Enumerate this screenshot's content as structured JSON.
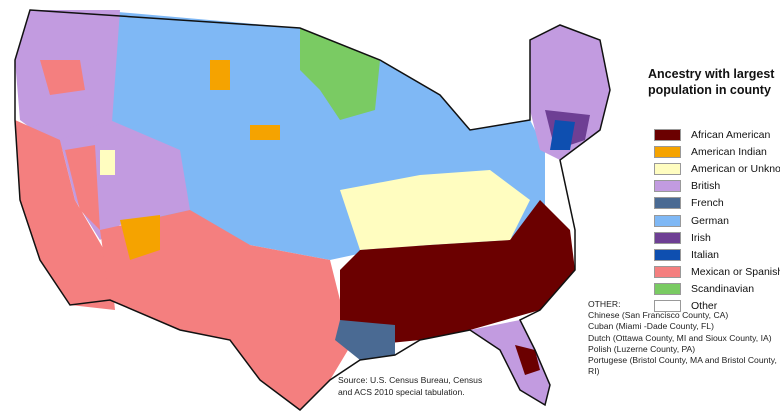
{
  "legend": {
    "title": "Ancestry with largest population in county",
    "items": [
      {
        "label": "African American",
        "color": "#6b0000"
      },
      {
        "label": "American Indian",
        "color": "#f5a300"
      },
      {
        "label": "American or Unknown",
        "color": "#fffdc0"
      },
      {
        "label": "British",
        "color": "#c29be0"
      },
      {
        "label": "French",
        "color": "#4a6a93"
      },
      {
        "label": "German",
        "color": "#7fb8f5"
      },
      {
        "label": "Irish",
        "color": "#6e3f94"
      },
      {
        "label": "Italian",
        "color": "#0e4fb0"
      },
      {
        "label": "Mexican or Spanish",
        "color": "#f47f7f"
      },
      {
        "label": "Scandinavian",
        "color": "#7acb63"
      },
      {
        "label": "Other",
        "color": "#ffffff"
      }
    ]
  },
  "other_note": {
    "heading": "OTHER:",
    "lines": [
      "Chinese (San Francisco County, CA)",
      "Cuban (Miami -Dade County, FL)",
      "Dutch (Ottawa County, MI and Sioux County, IA)",
      "Polish (Luzerne County, PA)",
      "Portugese (Bristol County, MA and Bristol County, RI)"
    ]
  },
  "source": "Source: U.S. Census Bureau, Census and ACS 2010 special tabulation."
}
